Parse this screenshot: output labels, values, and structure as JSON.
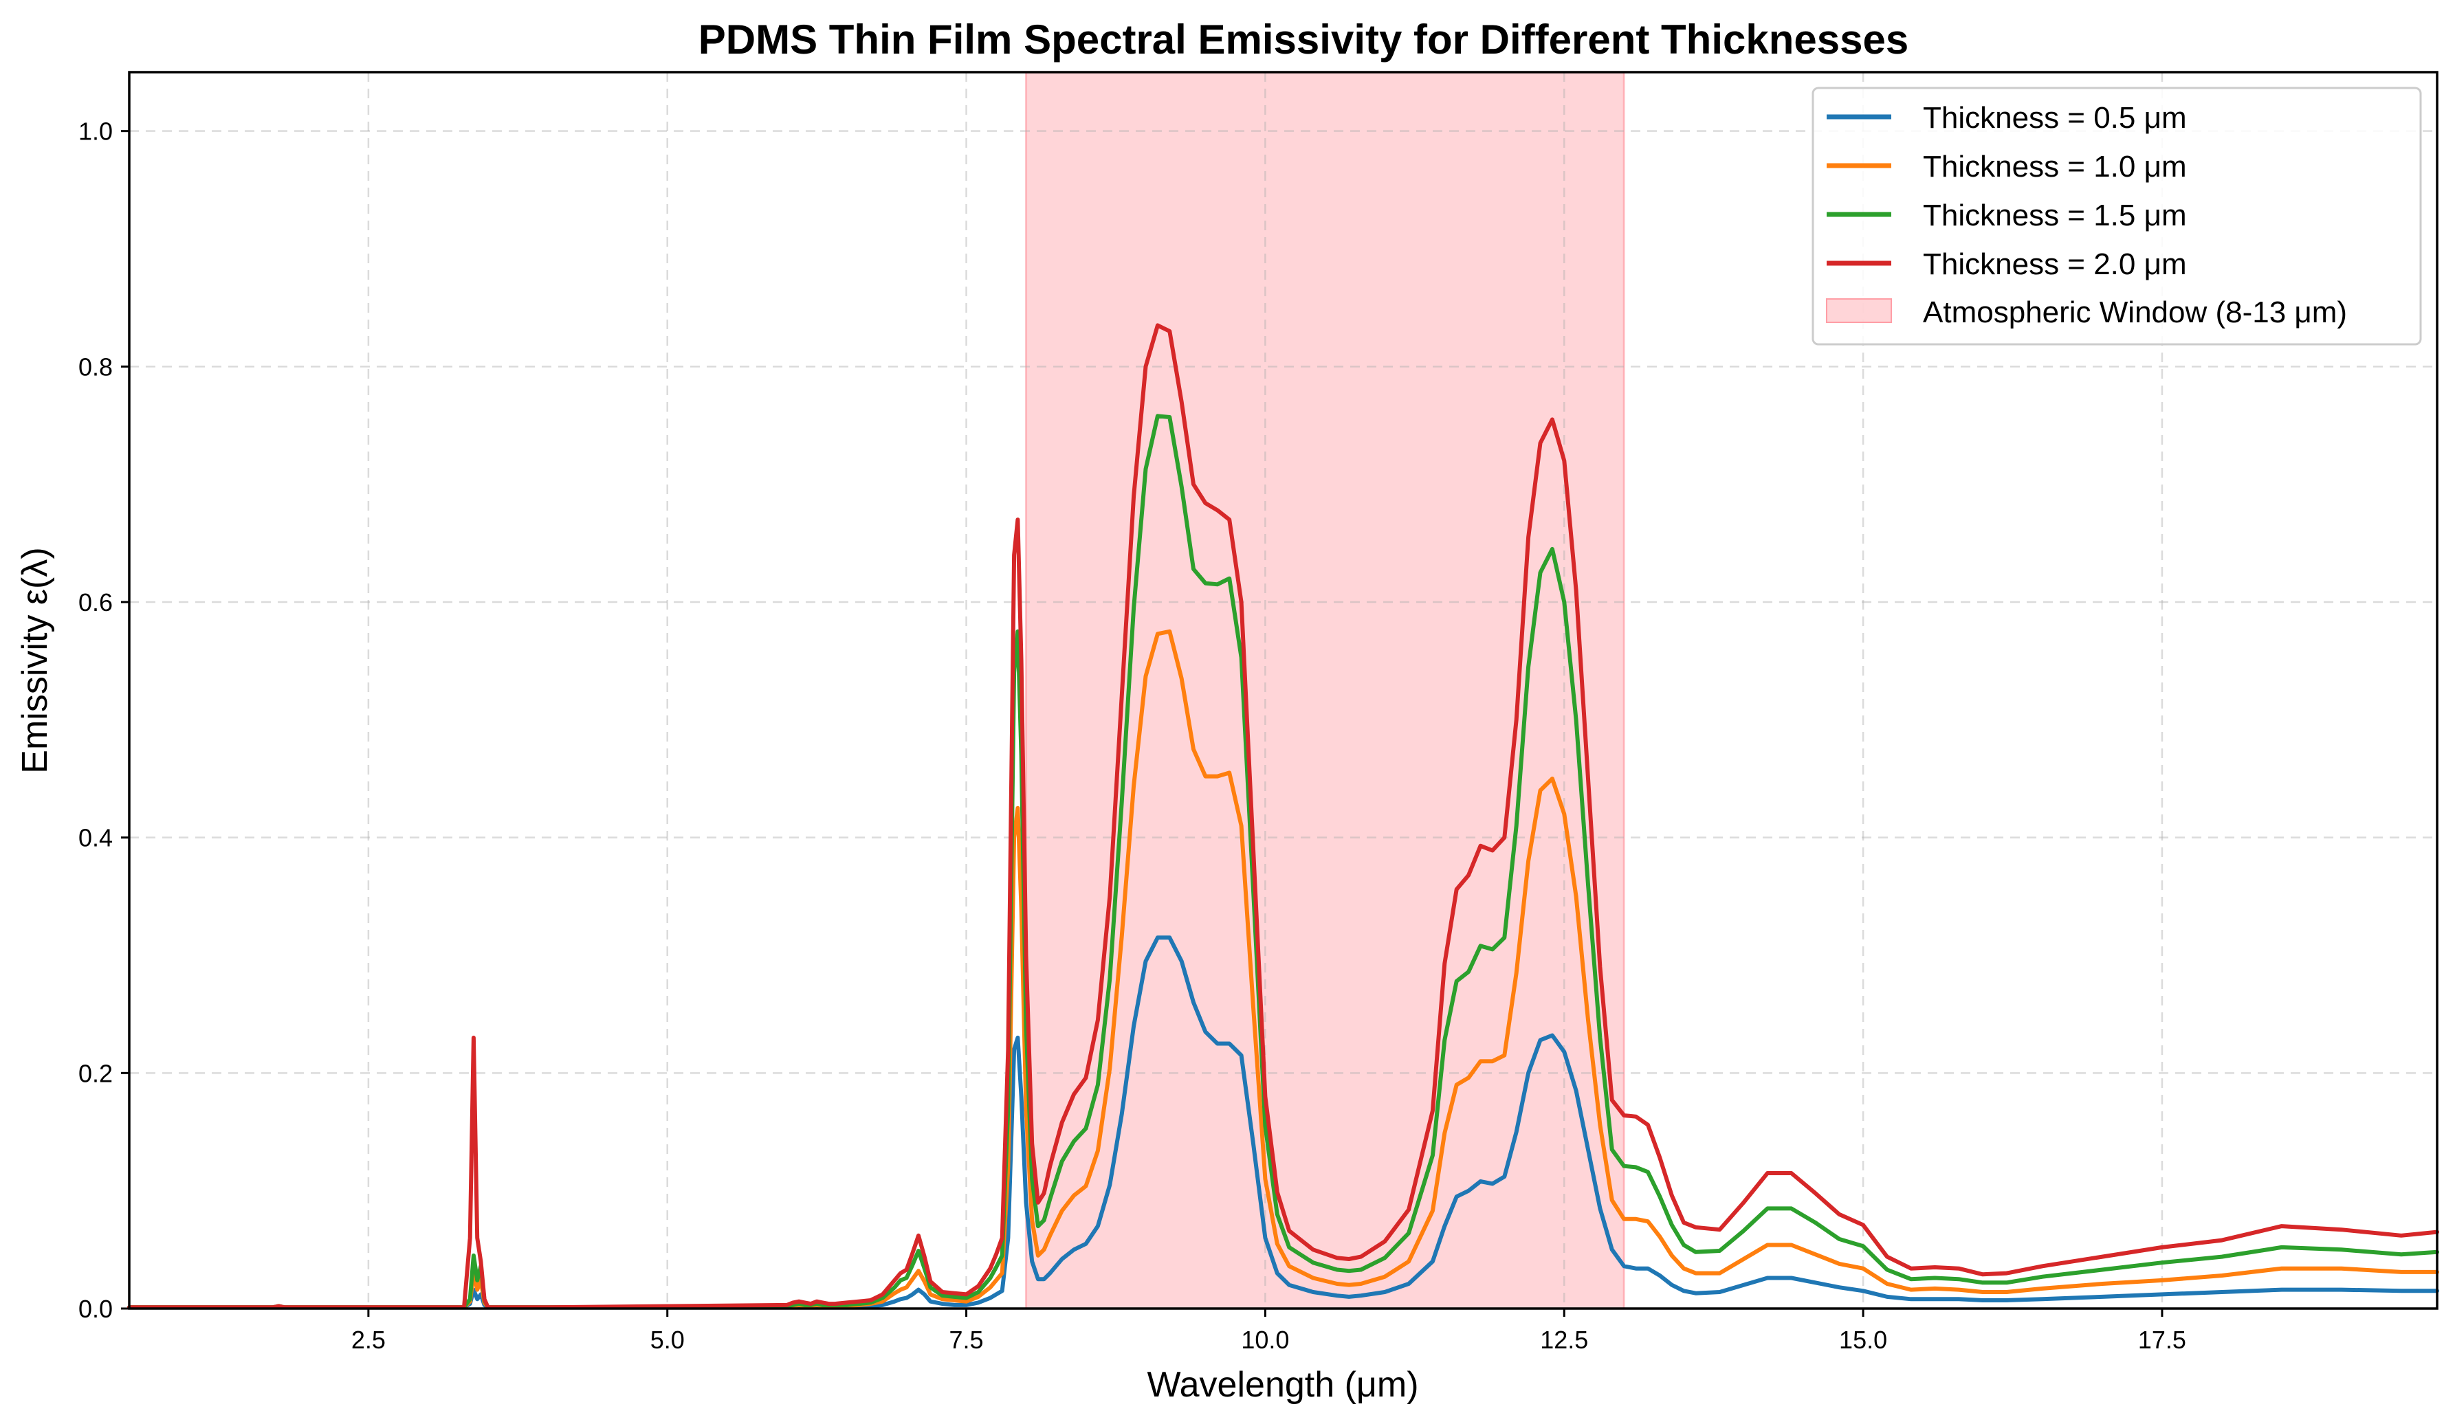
{
  "chart_data": {
    "type": "line",
    "title": "PDMS Thin Film Spectral Emissivity for Different Thicknesses",
    "xlabel": "Wavelength (μm)",
    "ylabel": "Emissivity ε(λ)",
    "xlim": [
      0.5,
      19.8
    ],
    "ylim": [
      0.0,
      1.05
    ],
    "grid": true,
    "legend_position": "top-right",
    "xticks": [
      2.5,
      5.0,
      7.5,
      10.0,
      12.5,
      15.0,
      17.5
    ],
    "xtick_labels": [
      "2.5",
      "5.0",
      "7.5",
      "10.0",
      "12.5",
      "15.0",
      "17.5"
    ],
    "yticks": [
      0.0,
      0.2,
      0.4,
      0.6,
      0.8,
      1.0
    ],
    "ytick_labels": [
      "0.0",
      "0.2",
      "0.4",
      "0.6",
      "0.8",
      "1.0"
    ],
    "shaded_region": {
      "label": "Atmospheric Window (8-13 μm)",
      "x_start": 8.0,
      "x_end": 13.0,
      "color": "#ffb3b8"
    },
    "base_series_name": "Thickness = 0.5 μm",
    "series": [
      {
        "name": "Thickness = 0.5 μm",
        "color": "#1f77b4",
        "scale": 1.0
      },
      {
        "name": "Thickness = 1.0 μm",
        "color": "#ff7f0e",
        "scale": 1.0
      },
      {
        "name": "Thickness = 1.5 μm",
        "color": "#2ca02c",
        "scale": 1.0
      },
      {
        "name": "Thickness = 2.0 μm",
        "color": "#d62728",
        "scale": 1.0
      }
    ],
    "x": [
      0.5,
      1.7,
      1.75,
      1.8,
      2.0,
      3.3,
      3.35,
      3.38,
      3.41,
      3.44,
      3.47,
      3.5,
      3.55,
      4.0,
      6.0,
      6.05,
      6.1,
      6.15,
      6.2,
      6.25,
      6.3,
      6.35,
      6.4,
      6.5,
      6.6,
      6.7,
      6.8,
      6.9,
      6.95,
      7.0,
      7.05,
      7.1,
      7.15,
      7.2,
      7.3,
      7.4,
      7.5,
      7.6,
      7.7,
      7.75,
      7.8,
      7.85,
      7.9,
      7.93,
      7.96,
      8.0,
      8.05,
      8.1,
      8.15,
      8.2,
      8.3,
      8.4,
      8.5,
      8.6,
      8.7,
      8.8,
      8.9,
      9.0,
      9.1,
      9.2,
      9.3,
      9.4,
      9.5,
      9.6,
      9.7,
      9.8,
      9.9,
      10.0,
      10.1,
      10.2,
      10.4,
      10.6,
      10.7,
      10.8,
      11.0,
      11.2,
      11.4,
      11.5,
      11.6,
      11.7,
      11.8,
      11.9,
      12.0,
      12.1,
      12.2,
      12.3,
      12.4,
      12.5,
      12.6,
      12.7,
      12.8,
      12.9,
      13.0,
      13.1,
      13.2,
      13.3,
      13.4,
      13.5,
      13.6,
      13.8,
      14.0,
      14.2,
      14.4,
      14.6,
      14.8,
      15.0,
      15.2,
      15.4,
      15.6,
      15.8,
      16.0,
      16.2,
      16.5,
      17.0,
      17.5,
      18.0,
      18.5,
      19.0,
      19.5,
      19.8
    ],
    "values_by_series": [
      [
        0.001,
        0.001,
        0.002,
        0.001,
        0.001,
        0.001,
        0.004,
        0.016,
        0.008,
        0.012,
        0.003,
        0.001,
        0.001,
        0.001,
        0.001,
        0.001,
        0.002,
        0.001,
        0.001,
        0.002,
        0.001,
        0.001,
        0.001,
        0.001,
        0.002,
        0.002,
        0.003,
        0.006,
        0.008,
        0.009,
        0.012,
        0.016,
        0.012,
        0.006,
        0.004,
        0.003,
        0.003,
        0.005,
        0.009,
        0.012,
        0.015,
        0.06,
        0.22,
        0.23,
        0.18,
        0.09,
        0.04,
        0.025,
        0.025,
        0.03,
        0.042,
        0.05,
        0.055,
        0.07,
        0.105,
        0.165,
        0.24,
        0.295,
        0.315,
        0.315,
        0.295,
        0.26,
        0.235,
        0.225,
        0.225,
        0.215,
        0.14,
        0.06,
        0.03,
        0.02,
        0.014,
        0.011,
        0.01,
        0.011,
        0.014,
        0.021,
        0.04,
        0.07,
        0.095,
        0.1,
        0.108,
        0.106,
        0.112,
        0.15,
        0.2,
        0.228,
        0.232,
        0.218,
        0.185,
        0.135,
        0.085,
        0.05,
        0.036,
        0.034,
        0.034,
        0.028,
        0.02,
        0.015,
        0.013,
        0.014,
        0.02,
        0.026,
        0.026,
        0.022,
        0.018,
        0.015,
        0.01,
        0.008,
        0.008,
        0.008,
        0.007,
        0.007,
        0.008,
        0.01,
        0.012,
        0.014,
        0.016,
        0.016,
        0.015,
        0.015
      ],
      [
        0.001,
        0.001,
        0.002,
        0.001,
        0.001,
        0.001,
        0.006,
        0.03,
        0.016,
        0.024,
        0.005,
        0.001,
        0.001,
        0.001,
        0.001,
        0.002,
        0.003,
        0.002,
        0.002,
        0.003,
        0.002,
        0.002,
        0.002,
        0.002,
        0.003,
        0.004,
        0.006,
        0.013,
        0.016,
        0.018,
        0.025,
        0.032,
        0.023,
        0.012,
        0.008,
        0.007,
        0.006,
        0.01,
        0.018,
        0.024,
        0.03,
        0.12,
        0.4,
        0.425,
        0.34,
        0.17,
        0.075,
        0.045,
        0.05,
        0.062,
        0.083,
        0.096,
        0.104,
        0.134,
        0.204,
        0.316,
        0.444,
        0.537,
        0.573,
        0.575,
        0.535,
        0.475,
        0.452,
        0.452,
        0.455,
        0.41,
        0.256,
        0.11,
        0.055,
        0.036,
        0.026,
        0.021,
        0.02,
        0.021,
        0.027,
        0.04,
        0.083,
        0.149,
        0.19,
        0.196,
        0.21,
        0.21,
        0.215,
        0.285,
        0.38,
        0.44,
        0.45,
        0.42,
        0.35,
        0.245,
        0.156,
        0.092,
        0.076,
        0.076,
        0.074,
        0.061,
        0.045,
        0.034,
        0.03,
        0.03,
        0.042,
        0.054,
        0.054,
        0.046,
        0.038,
        0.034,
        0.021,
        0.016,
        0.017,
        0.016,
        0.014,
        0.014,
        0.017,
        0.021,
        0.024,
        0.028,
        0.034,
        0.034,
        0.031,
        0.031
      ],
      [
        0.001,
        0.001,
        0.002,
        0.001,
        0.001,
        0.001,
        0.008,
        0.045,
        0.024,
        0.036,
        0.007,
        0.001,
        0.001,
        0.001,
        0.002,
        0.003,
        0.004,
        0.003,
        0.003,
        0.004,
        0.003,
        0.003,
        0.003,
        0.003,
        0.004,
        0.005,
        0.009,
        0.018,
        0.024,
        0.026,
        0.037,
        0.049,
        0.034,
        0.018,
        0.011,
        0.01,
        0.009,
        0.014,
        0.026,
        0.035,
        0.045,
        0.17,
        0.54,
        0.575,
        0.47,
        0.24,
        0.11,
        0.07,
        0.075,
        0.093,
        0.125,
        0.142,
        0.153,
        0.19,
        0.28,
        0.43,
        0.595,
        0.713,
        0.758,
        0.757,
        0.698,
        0.628,
        0.616,
        0.615,
        0.62,
        0.553,
        0.355,
        0.155,
        0.08,
        0.052,
        0.039,
        0.033,
        0.032,
        0.033,
        0.043,
        0.064,
        0.13,
        0.228,
        0.278,
        0.286,
        0.308,
        0.305,
        0.315,
        0.41,
        0.545,
        0.625,
        0.645,
        0.6,
        0.5,
        0.36,
        0.23,
        0.135,
        0.121,
        0.12,
        0.116,
        0.095,
        0.071,
        0.054,
        0.048,
        0.049,
        0.066,
        0.085,
        0.085,
        0.073,
        0.059,
        0.053,
        0.033,
        0.025,
        0.026,
        0.025,
        0.022,
        0.022,
        0.027,
        0.033,
        0.039,
        0.044,
        0.052,
        0.05,
        0.046,
        0.048
      ],
      [
        0.001,
        0.001,
        0.002,
        0.001,
        0.001,
        0.001,
        0.06,
        0.23,
        0.06,
        0.04,
        0.008,
        0.001,
        0.001,
        0.001,
        0.003,
        0.005,
        0.006,
        0.005,
        0.004,
        0.006,
        0.005,
        0.004,
        0.004,
        0.005,
        0.006,
        0.007,
        0.012,
        0.024,
        0.03,
        0.033,
        0.047,
        0.062,
        0.044,
        0.023,
        0.014,
        0.013,
        0.012,
        0.019,
        0.034,
        0.046,
        0.06,
        0.22,
        0.64,
        0.67,
        0.55,
        0.3,
        0.14,
        0.09,
        0.098,
        0.121,
        0.158,
        0.182,
        0.196,
        0.245,
        0.35,
        0.52,
        0.69,
        0.8,
        0.835,
        0.83,
        0.77,
        0.7,
        0.684,
        0.678,
        0.67,
        0.6,
        0.39,
        0.18,
        0.099,
        0.066,
        0.05,
        0.043,
        0.042,
        0.044,
        0.057,
        0.084,
        0.168,
        0.293,
        0.356,
        0.368,
        0.393,
        0.389,
        0.4,
        0.5,
        0.655,
        0.735,
        0.755,
        0.72,
        0.61,
        0.45,
        0.29,
        0.177,
        0.164,
        0.163,
        0.156,
        0.128,
        0.096,
        0.073,
        0.069,
        0.067,
        0.09,
        0.115,
        0.115,
        0.098,
        0.08,
        0.071,
        0.044,
        0.034,
        0.035,
        0.034,
        0.029,
        0.03,
        0.036,
        0.044,
        0.052,
        0.058,
        0.07,
        0.067,
        0.062,
        0.065
      ]
    ]
  }
}
